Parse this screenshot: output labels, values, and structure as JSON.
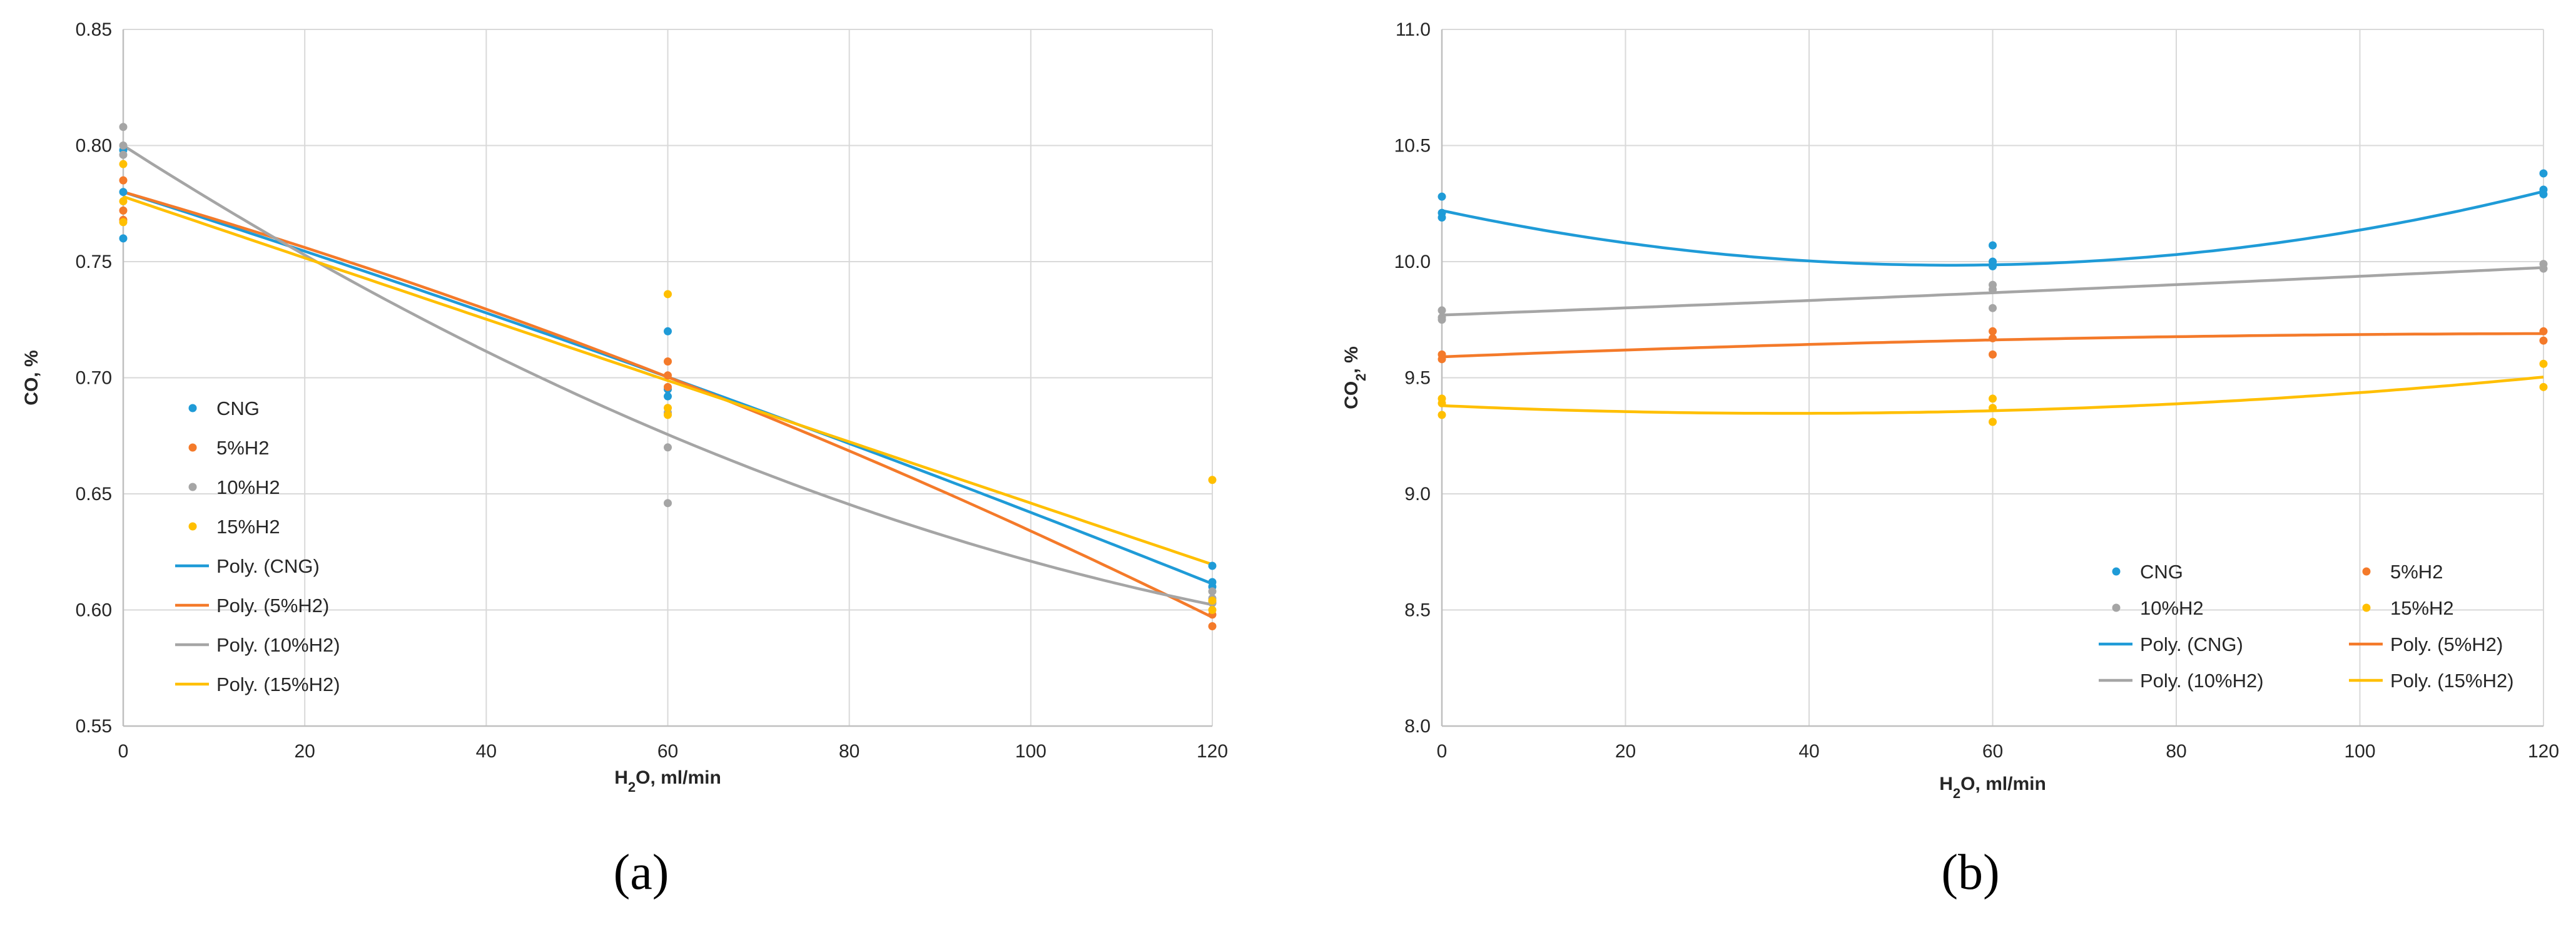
{
  "chart_data": [
    {
      "type": "scatter",
      "panel_label": "(a)",
      "ylabel": "CO, %",
      "xlabel_pre": "H",
      "xlabel_sub": "2",
      "xlabel_post": "O, ml/min",
      "xlim": [
        0,
        120
      ],
      "ylim": [
        0.55,
        0.85
      ],
      "xticks": [
        0,
        20,
        40,
        60,
        80,
        100,
        120
      ],
      "yticks": [
        0.55,
        0.6,
        0.65,
        0.7,
        0.75,
        0.8,
        0.85
      ],
      "ytick_labels": [
        "0.55",
        "0.60",
        "0.65",
        "0.70",
        "0.75",
        "0.80",
        "0.85"
      ],
      "grid": true,
      "legend_position": "bottom-left",
      "legend_columns": 1,
      "series": [
        {
          "name": "CNG",
          "color": "#1f9bd7",
          "points": [
            [
              0,
              0.76
            ],
            [
              0,
              0.78
            ],
            [
              0,
              0.798
            ],
            [
              60,
              0.72
            ],
            [
              60,
              0.695
            ],
            [
              60,
              0.692
            ],
            [
              120,
              0.619
            ],
            [
              120,
              0.612
            ],
            [
              120,
              0.61
            ]
          ],
          "fit_name": "Poly. (CNG)",
          "fit": [
            0.78,
            -0.00125,
            -1.3e-06
          ]
        },
        {
          "name": "5%H2",
          "color": "#f47a2a",
          "points": [
            [
              0,
              0.785
            ],
            [
              0,
              0.772
            ],
            [
              0,
              0.768
            ],
            [
              60,
              0.707
            ],
            [
              60,
              0.701
            ],
            [
              60,
              0.696
            ],
            [
              120,
              0.603
            ],
            [
              120,
              0.598
            ],
            [
              120,
              0.593
            ]
          ],
          "fit_name": "Poly. (5%H2)",
          "fit": [
            0.78,
            -0.00113,
            -3.3e-06
          ]
        },
        {
          "name": "10%H2",
          "color": "#a5a5a5",
          "points": [
            [
              0,
              0.808
            ],
            [
              0,
              0.8
            ],
            [
              0,
              0.796
            ],
            [
              60,
              0.67
            ],
            [
              60,
              0.646
            ],
            [
              60,
              0.685
            ],
            [
              120,
              0.608
            ],
            [
              120,
              0.605
            ],
            [
              120,
              0.603
            ]
          ],
          "fit_name": "Poly. (10%H2)",
          "fit": [
            0.8,
            -0.0025,
            7.1e-06
          ]
        },
        {
          "name": "15%H2",
          "color": "#ffbf00",
          "points": [
            [
              0,
              0.792
            ],
            [
              0,
              0.776
            ],
            [
              0,
              0.767
            ],
            [
              60,
              0.736
            ],
            [
              60,
              0.687
            ],
            [
              60,
              0.684
            ],
            [
              120,
              0.656
            ],
            [
              120,
              0.604
            ],
            [
              120,
              0.6
            ]
          ],
          "fit_name": "Poly. (15%H2)",
          "fit": [
            0.778,
            -0.00132,
            0.0
          ]
        }
      ]
    },
    {
      "type": "scatter",
      "panel_label": "(b)",
      "ylabel_pre": "CO",
      "ylabel_sub": "2",
      "ylabel_post": ", %",
      "xlabel_pre": "H",
      "xlabel_sub": "2",
      "xlabel_post": "O, ml/min",
      "xlim": [
        0,
        120
      ],
      "ylim": [
        8.0,
        11.0
      ],
      "xticks": [
        0,
        20,
        40,
        60,
        80,
        100,
        120
      ],
      "yticks": [
        8.0,
        8.5,
        9.0,
        9.5,
        10.0,
        10.5,
        11.0
      ],
      "ytick_labels": [
        "8.0",
        "8.5",
        "9.0",
        "9.5",
        "10.0",
        "10.5",
        "11.0"
      ],
      "grid": true,
      "legend_position": "bottom-right",
      "legend_columns": 2,
      "series": [
        {
          "name": "CNG",
          "color": "#1f9bd7",
          "points": [
            [
              0,
              10.28
            ],
            [
              0,
              10.21
            ],
            [
              0,
              10.19
            ],
            [
              60,
              10.07
            ],
            [
              60,
              10.0
            ],
            [
              60,
              9.98
            ],
            [
              120,
              10.38
            ],
            [
              120,
              10.31
            ],
            [
              120,
              10.29
            ]
          ],
          "fit_name": "Poly. (CNG)",
          "fit": [
            10.22,
            -0.00848,
            7.64e-05
          ]
        },
        {
          "name": "5%H2",
          "color": "#f47a2a",
          "points": [
            [
              0,
              9.6
            ],
            [
              0,
              9.58
            ],
            [
              60,
              9.7
            ],
            [
              60,
              9.67
            ],
            [
              60,
              9.6
            ],
            [
              120,
              9.7
            ],
            [
              120,
              9.66
            ]
          ],
          "fit_name": "Poly. (5%H2)",
          "fit": [
            9.59,
            0.00159,
            -6.3e-06
          ]
        },
        {
          "name": "10%H2",
          "color": "#a5a5a5",
          "points": [
            [
              0,
              9.79
            ],
            [
              0,
              9.76
            ],
            [
              0,
              9.75
            ],
            [
              60,
              9.9
            ],
            [
              60,
              9.88
            ],
            [
              60,
              9.8
            ],
            [
              120,
              9.99
            ],
            [
              120,
              9.97
            ]
          ],
          "fit_name": "Poly. (10%H2)",
          "fit": [
            9.77,
            0.0015,
            1.7e-06
          ]
        },
        {
          "name": "15%H2",
          "color": "#ffbf00",
          "points": [
            [
              0,
              9.41
            ],
            [
              0,
              9.39
            ],
            [
              0,
              9.34
            ],
            [
              60,
              9.41
            ],
            [
              60,
              9.37
            ],
            [
              60,
              9.31
            ],
            [
              120,
              9.56
            ],
            [
              120,
              9.46
            ]
          ],
          "fit_name": "Poly. (15%H2)",
          "fit": [
            9.38,
            -0.00176,
            2.32e-05
          ]
        }
      ]
    }
  ]
}
